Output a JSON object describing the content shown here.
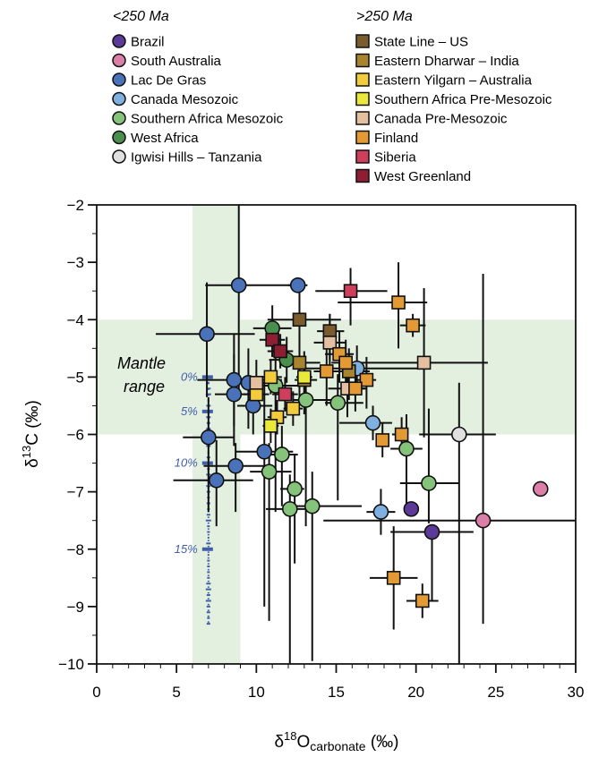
{
  "chart_data": {
    "type": "scatter",
    "title": "",
    "xlabel": "δ18O carbonate (‰)",
    "xlabel_parts": {
      "delta": "δ",
      "sup": "18",
      "base": "O",
      "sub": "carbonate",
      "unit": "(‰)"
    },
    "ylabel": "δ13C (‰)",
    "ylabel_parts": {
      "delta": "δ",
      "sup": "13",
      "base": "C",
      "unit": "(‰)"
    },
    "xlim": [
      0,
      30
    ],
    "ylim": [
      -10,
      -2
    ],
    "xticks": [
      0,
      5,
      10,
      15,
      20,
      25,
      30
    ],
    "yticks": [
      -2,
      -3,
      -4,
      -5,
      -6,
      -7,
      -8,
      -9,
      -10
    ],
    "grid": false,
    "legend_placement": "top",
    "legend_groups": [
      {
        "heading": "<250 Ma",
        "marker": "circle",
        "entries": [
          {
            "name": "Brazil",
            "color": "#5b3a98"
          },
          {
            "name": "South Australia",
            "color": "#dc7fa8"
          },
          {
            "name": "Lac De Gras",
            "color": "#4a72b8"
          },
          {
            "name": "Canada Mesozoic",
            "color": "#7fb0e0"
          },
          {
            "name": "Southern Africa Mesozoic",
            "color": "#85c27a"
          },
          {
            "name": "West Africa",
            "color": "#4b8f4f"
          },
          {
            "name": "Igwisi Hills – Tanzania",
            "color": "#e0e0e0"
          }
        ]
      },
      {
        "heading": ">250 Ma",
        "marker": "square",
        "entries": [
          {
            "name": "State Line – US",
            "color": "#7a5c2e"
          },
          {
            "name": "Eastern Dharwar – India",
            "color": "#a9842e"
          },
          {
            "name": "Eastern Yilgarn – Australia",
            "color": "#f2cc3c"
          },
          {
            "name": "Southern Africa Pre-Mesozoic",
            "color": "#eae83a"
          },
          {
            "name": "Canada Pre-Mesozoic",
            "color": "#e5c0a0"
          },
          {
            "name": "Finland",
            "color": "#e39a34"
          },
          {
            "name": "Siberia",
            "color": "#cf3f5c"
          },
          {
            "name": "West Greenland",
            "color": "#8e1e32"
          }
        ]
      }
    ],
    "mantle_range": {
      "label_line1": "Mantle",
      "label_line2": "range",
      "x": [
        6,
        9
      ],
      "y": [
        -6,
        -4
      ],
      "color": "#e3efdf"
    },
    "mixing_curve": {
      "color": "#3f5fa8",
      "x": 7,
      "y_start": -5,
      "y_end": -9.3,
      "labels": [
        {
          "text": "0%",
          "y": -5.0
        },
        {
          "text": "5%",
          "y": -5.6
        },
        {
          "text": "10%",
          "y": -6.5
        },
        {
          "text": "15%",
          "y": -8.0
        }
      ]
    },
    "series": [
      {
        "name": "Brazil",
        "points": [
          {
            "x": 19.7,
            "y": -7.3,
            "xerr": [
              0,
              0
            ],
            "yerr": [
              0.1,
              0.1
            ]
          },
          {
            "x": 21.0,
            "y": -7.7,
            "xerr": [
              2.6,
              2.6
            ],
            "yerr": [
              0.0,
              1.2
            ]
          }
        ]
      },
      {
        "name": "South Australia",
        "points": [
          {
            "x": 27.8,
            "y": -6.95,
            "xerr": [
              0,
              0
            ],
            "yerr": [
              0.1,
              0.1
            ]
          },
          {
            "x": 24.2,
            "y": -7.5,
            "xerr": [
              10.0,
              5.8
            ],
            "yerr": [
              4.3,
              1.8
            ]
          }
        ]
      },
      {
        "name": "Lac De Gras",
        "points": [
          {
            "x": 8.9,
            "y": -3.4,
            "xerr": [
              2.1,
              3.5
            ],
            "yerr": [
              1.4,
              2.0
            ]
          },
          {
            "x": 12.6,
            "y": -3.4,
            "xerr": [
              0.6,
              0.6
            ],
            "yerr": [
              0.1,
              0.1
            ]
          },
          {
            "x": 6.9,
            "y": -4.25,
            "xerr": [
              3.2,
              3.0
            ],
            "yerr": [
              0.9,
              1.1
            ]
          },
          {
            "x": 8.6,
            "y": -5.05,
            "xerr": [
              2.3,
              3.0
            ],
            "yerr": [
              0.8,
              0.8
            ]
          },
          {
            "x": 9.5,
            "y": -5.1,
            "xerr": [
              0.8,
              1.4
            ],
            "yerr": [
              0.6,
              0.8
            ]
          },
          {
            "x": 8.6,
            "y": -5.3,
            "xerr": [
              1.2,
              1.8
            ],
            "yerr": [
              0.7,
              0.9
            ]
          },
          {
            "x": 9.8,
            "y": -5.5,
            "xerr": [
              1.0,
              1.2
            ],
            "yerr": [
              0.4,
              0.5
            ]
          },
          {
            "x": 7.0,
            "y": -6.05,
            "xerr": [
              1.6,
              1.6
            ],
            "yerr": [
              0.7,
              1.3
            ]
          },
          {
            "x": 10.5,
            "y": -6.3,
            "xerr": [
              1.8,
              1.8
            ],
            "yerr": [
              1.2,
              2.7
            ]
          },
          {
            "x": 8.7,
            "y": -6.55,
            "xerr": [
              2.0,
              2.1
            ],
            "yerr": [
              0.4,
              0.8
            ]
          },
          {
            "x": 7.5,
            "y": -6.8,
            "xerr": [
              2.7,
              2.3
            ],
            "yerr": [
              0.7,
              0.8
            ]
          }
        ]
      },
      {
        "name": "Canada Mesozoic",
        "points": [
          {
            "x": 16.3,
            "y": -4.85,
            "xerr": [
              4.0,
              3.8
            ],
            "yerr": [
              0.4,
              0.4
            ]
          },
          {
            "x": 17.3,
            "y": -5.8,
            "xerr": [
              2.1,
              1.2
            ],
            "yerr": [
              0.3,
              0.3
            ]
          },
          {
            "x": 17.8,
            "y": -7.35,
            "xerr": [
              0.9,
              0.9
            ],
            "yerr": [
              0.4,
              0.4
            ]
          }
        ]
      },
      {
        "name": "Southern Africa Mesozoic",
        "points": [
          {
            "x": 11.2,
            "y": -5.15,
            "xerr": [
              1.8,
              1.5
            ],
            "yerr": [
              0.5,
              2.2
            ]
          },
          {
            "x": 13.1,
            "y": -5.4,
            "xerr": [
              0.8,
              1.6
            ],
            "yerr": [
              0.5,
              2.2
            ]
          },
          {
            "x": 15.1,
            "y": -5.45,
            "xerr": [
              0.8,
              1.6
            ],
            "yerr": [
              0.5,
              1.7
            ]
          },
          {
            "x": 11.6,
            "y": -6.35,
            "xerr": [
              1.0,
              1.0
            ],
            "yerr": [
              0.5,
              0.9
            ]
          },
          {
            "x": 10.8,
            "y": -6.65,
            "xerr": [
              1.2,
              1.4
            ],
            "yerr": [
              0.5,
              2.6
            ]
          },
          {
            "x": 12.4,
            "y": -6.95,
            "xerr": [
              0.9,
              0.6
            ],
            "yerr": [
              0.6,
              1.3
            ]
          },
          {
            "x": 12.1,
            "y": -7.3,
            "xerr": [
              1.5,
              1.3
            ],
            "yerr": [
              0.6,
              2.7
            ]
          },
          {
            "x": 13.5,
            "y": -7.25,
            "xerr": [
              1.7,
              3.1
            ],
            "yerr": [
              0.6,
              2.7
            ]
          },
          {
            "x": 19.4,
            "y": -6.25,
            "xerr": [
              1.0,
              1.0
            ],
            "yerr": [
              0.6,
              1.0
            ]
          },
          {
            "x": 20.8,
            "y": -6.85,
            "xerr": [
              1.8,
              1.9
            ],
            "yerr": [
              1.3,
              0.7
            ]
          }
        ]
      },
      {
        "name": "West Africa",
        "points": [
          {
            "x": 11.0,
            "y": -4.15,
            "xerr": [
              1.2,
              1.2
            ],
            "yerr": [
              0.4,
              0.5
            ]
          },
          {
            "x": 11.9,
            "y": -4.7,
            "xerr": [
              1.1,
              1.1
            ],
            "yerr": [
              0.4,
              0.4
            ]
          }
        ]
      },
      {
        "name": "Igwisi Hills – Tanzania",
        "points": [
          {
            "x": 22.7,
            "y": -6.0,
            "xerr": [
              2.5,
              2.3
            ],
            "yerr": [
              0.9,
              4.0
            ]
          }
        ]
      },
      {
        "name": "State Line – US",
        "points": [
          {
            "x": 12.7,
            "y": -4.0,
            "xerr": [
              2.0,
              2.6
            ],
            "yerr": [
              0.5,
              1.0
            ]
          },
          {
            "x": 14.6,
            "y": -4.2,
            "xerr": [
              0.8,
              0.9
            ],
            "yerr": [
              0.3,
              0.5
            ]
          }
        ]
      },
      {
        "name": "Eastern Dharwar – India",
        "points": [
          {
            "x": 12.7,
            "y": -4.75,
            "xerr": [
              1.0,
              1.3
            ],
            "yerr": [
              0.5,
              0.6
            ]
          },
          {
            "x": 13.0,
            "y": -5.05,
            "xerr": [
              0.6,
              0.8
            ],
            "yerr": [
              0.5,
              0.6
            ]
          },
          {
            "x": 15.8,
            "y": -4.9,
            "xerr": [
              0.9,
              1.3
            ],
            "yerr": [
              0.4,
              0.5
            ]
          }
        ]
      },
      {
        "name": "Eastern Yilgarn – Australia",
        "points": [
          {
            "x": 10.9,
            "y": -5.0,
            "xerr": [
              0.7,
              0.7
            ],
            "yerr": [
              0.3,
              0.3
            ]
          },
          {
            "x": 10.0,
            "y": -5.3,
            "xerr": [
              0.8,
              0.8
            ],
            "yerr": [
              0.3,
              0.3
            ]
          },
          {
            "x": 11.3,
            "y": -5.7,
            "xerr": [
              0.6,
              0.6
            ],
            "yerr": [
              0.3,
              0.3
            ]
          },
          {
            "x": 12.3,
            "y": -5.55,
            "xerr": [
              0.6,
              0.6
            ],
            "yerr": [
              0.3,
              0.3
            ]
          }
        ]
      },
      {
        "name": "Southern Africa Pre-Mesozoic",
        "points": [
          {
            "x": 10.9,
            "y": -5.85,
            "xerr": [
              0.5,
              0.5
            ],
            "yerr": [
              0.3,
              0.3
            ]
          },
          {
            "x": 13.0,
            "y": -5.0,
            "xerr": [
              0.5,
              0.5
            ],
            "yerr": [
              0.3,
              0.3
            ]
          }
        ]
      },
      {
        "name": "Canada Pre-Mesozoic",
        "points": [
          {
            "x": 10.0,
            "y": -5.1,
            "xerr": [
              0.9,
              0.9
            ],
            "yerr": [
              0.4,
              0.4
            ]
          },
          {
            "x": 14.6,
            "y": -4.4,
            "xerr": [
              1.0,
              1.0
            ],
            "yerr": [
              0.5,
              0.5
            ]
          },
          {
            "x": 15.7,
            "y": -5.2,
            "xerr": [
              1.2,
              1.2
            ],
            "yerr": [
              0.5,
              0.5
            ]
          },
          {
            "x": 20.5,
            "y": -4.75,
            "xerr": [
              4.5,
              4.0
            ],
            "yerr": [
              1.3,
              1.3
            ]
          }
        ]
      },
      {
        "name": "Finland",
        "points": [
          {
            "x": 18.9,
            "y": -3.7,
            "xerr": [
              3.8,
              1.8
            ],
            "yerr": [
              0.7,
              0.8
            ]
          },
          {
            "x": 19.8,
            "y": -4.1,
            "xerr": [
              0.8,
              0.8
            ],
            "yerr": [
              0.2,
              0.2
            ]
          },
          {
            "x": 14.4,
            "y": -4.9,
            "xerr": [
              0.8,
              0.9
            ],
            "yerr": [
              0.5,
              0.6
            ]
          },
          {
            "x": 15.2,
            "y": -4.6,
            "xerr": [
              0.9,
              0.9
            ],
            "yerr": [
              0.4,
              0.5
            ]
          },
          {
            "x": 15.6,
            "y": -4.75,
            "xerr": [
              0.9,
              0.9
            ],
            "yerr": [
              0.4,
              0.5
            ]
          },
          {
            "x": 16.9,
            "y": -5.05,
            "xerr": [
              0.7,
              0.6
            ],
            "yerr": [
              0.4,
              0.5
            ]
          },
          {
            "x": 16.2,
            "y": -5.2,
            "xerr": [
              0.6,
              0.6
            ],
            "yerr": [
              0.3,
              0.4
            ]
          },
          {
            "x": 17.9,
            "y": -6.1,
            "xerr": [
              0.4,
              0.4
            ],
            "yerr": [
              0.3,
              0.3
            ]
          },
          {
            "x": 19.1,
            "y": -6.0,
            "xerr": [
              0.6,
              0.4
            ],
            "yerr": [
              0.3,
              0.3
            ]
          },
          {
            "x": 18.6,
            "y": -8.5,
            "xerr": [
              1.5,
              1.5
            ],
            "yerr": [
              0.9,
              0.9
            ]
          },
          {
            "x": 20.4,
            "y": -8.9,
            "xerr": [
              1.0,
              1.0
            ],
            "yerr": [
              0.3,
              0.3
            ]
          }
        ]
      },
      {
        "name": "Siberia",
        "points": [
          {
            "x": 15.9,
            "y": -3.5,
            "xerr": [
              2.2,
              2.3
            ],
            "yerr": [
              0.4,
              0.6
            ]
          },
          {
            "x": 11.8,
            "y": -5.3,
            "xerr": [
              0.8,
              0.8
            ],
            "yerr": [
              0.3,
              0.3
            ]
          }
        ]
      },
      {
        "name": "West Greenland",
        "points": [
          {
            "x": 11.0,
            "y": -4.35,
            "xerr": [
              0.8,
              0.8
            ],
            "yerr": [
              0.3,
              0.3
            ]
          },
          {
            "x": 11.5,
            "y": -4.55,
            "xerr": [
              0.8,
              0.8
            ],
            "yerr": [
              0.3,
              0.3
            ]
          }
        ]
      }
    ]
  }
}
